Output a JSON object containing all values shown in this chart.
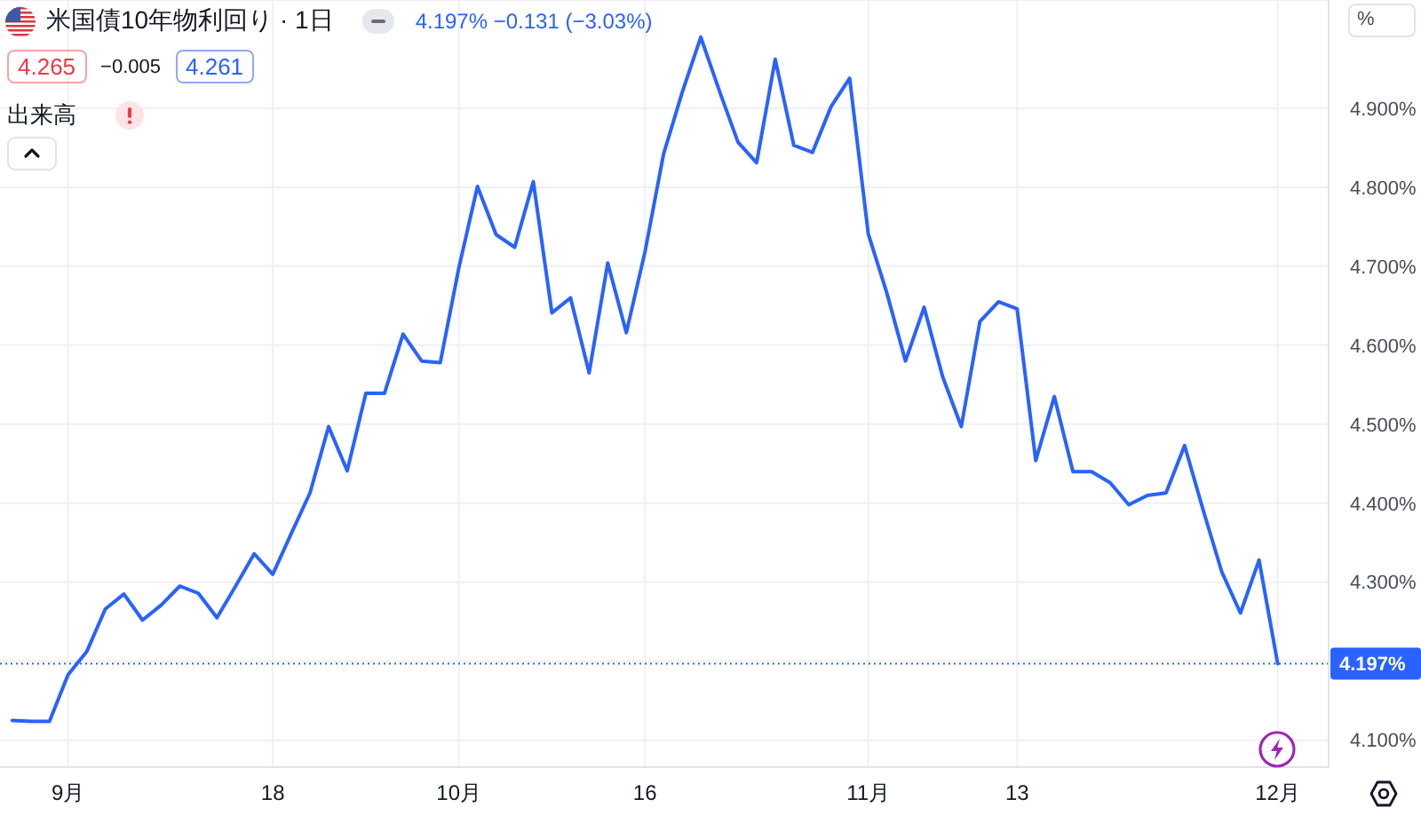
{
  "chart_data": {
    "type": "line",
    "title": "米国債10年物利回り · 1日",
    "subtitle": "4.197% −0.131 (−3.03%)",
    "ylabel": "%",
    "annotations": [
      "4.265",
      "−0.005",
      "4.261",
      "出来高"
    ],
    "categories": [
      null,
      null,
      null,
      "9月",
      null,
      null,
      null,
      null,
      null,
      null,
      null,
      null,
      null,
      null,
      "18",
      null,
      null,
      null,
      null,
      null,
      null,
      null,
      null,
      null,
      "10月",
      null,
      null,
      null,
      null,
      null,
      null,
      null,
      null,
      null,
      "16",
      null,
      null,
      null,
      null,
      null,
      null,
      null,
      null,
      null,
      null,
      null,
      "11月",
      null,
      null,
      null,
      null,
      null,
      null,
      null,
      "13",
      null,
      null,
      null,
      null,
      null,
      null,
      null,
      null,
      null,
      null,
      null,
      null,
      null,
      "12月"
    ],
    "values": [
      4.125,
      4.124,
      4.124,
      4.183,
      4.212,
      4.266,
      4.285,
      4.252,
      4.271,
      4.295,
      4.286,
      4.255,
      4.295,
      4.336,
      4.31,
      4.362,
      4.413,
      4.497,
      4.441,
      4.539,
      4.539,
      4.614,
      4.58,
      4.578,
      4.698,
      4.801,
      4.74,
      4.724,
      4.807,
      4.641,
      4.66,
      4.565,
      4.704,
      4.616,
      4.718,
      4.842,
      4.92,
      4.99,
      4.922,
      4.857,
      4.831,
      4.962,
      4.853,
      4.844,
      4.902,
      4.938,
      4.741,
      4.666,
      4.58,
      4.648,
      4.56,
      4.497,
      4.63,
      4.655,
      4.646,
      4.454,
      4.535,
      4.44,
      4.44,
      4.426,
      4.398,
      4.41,
      4.413,
      4.473,
      4.391,
      4.313,
      4.261,
      4.328,
      4.197
    ],
    "color": "#2962ff",
    "ylim": [
      4.066,
      5.037
    ],
    "yticks": [
      {
        "value": 4.1,
        "label": "4.100%"
      },
      {
        "value": 4.2,
        "label": null
      },
      {
        "value": 4.3,
        "label": "4.300%"
      },
      {
        "value": 4.4,
        "label": "4.400%"
      },
      {
        "value": 4.5,
        "label": "4.500%"
      },
      {
        "value": 4.6,
        "label": "4.600%"
      },
      {
        "value": 4.7,
        "label": "4.700%"
      },
      {
        "value": 4.8,
        "label": "4.800%"
      },
      {
        "value": 4.9,
        "label": "4.900%"
      }
    ],
    "grid": true,
    "marker": "none",
    "line_style": "solid",
    "ref_lines": [
      {
        "axis": "y",
        "value": 4.197,
        "label": "4.197%",
        "color": "#2962ff",
        "line_style": "dotted"
      }
    ]
  }
}
